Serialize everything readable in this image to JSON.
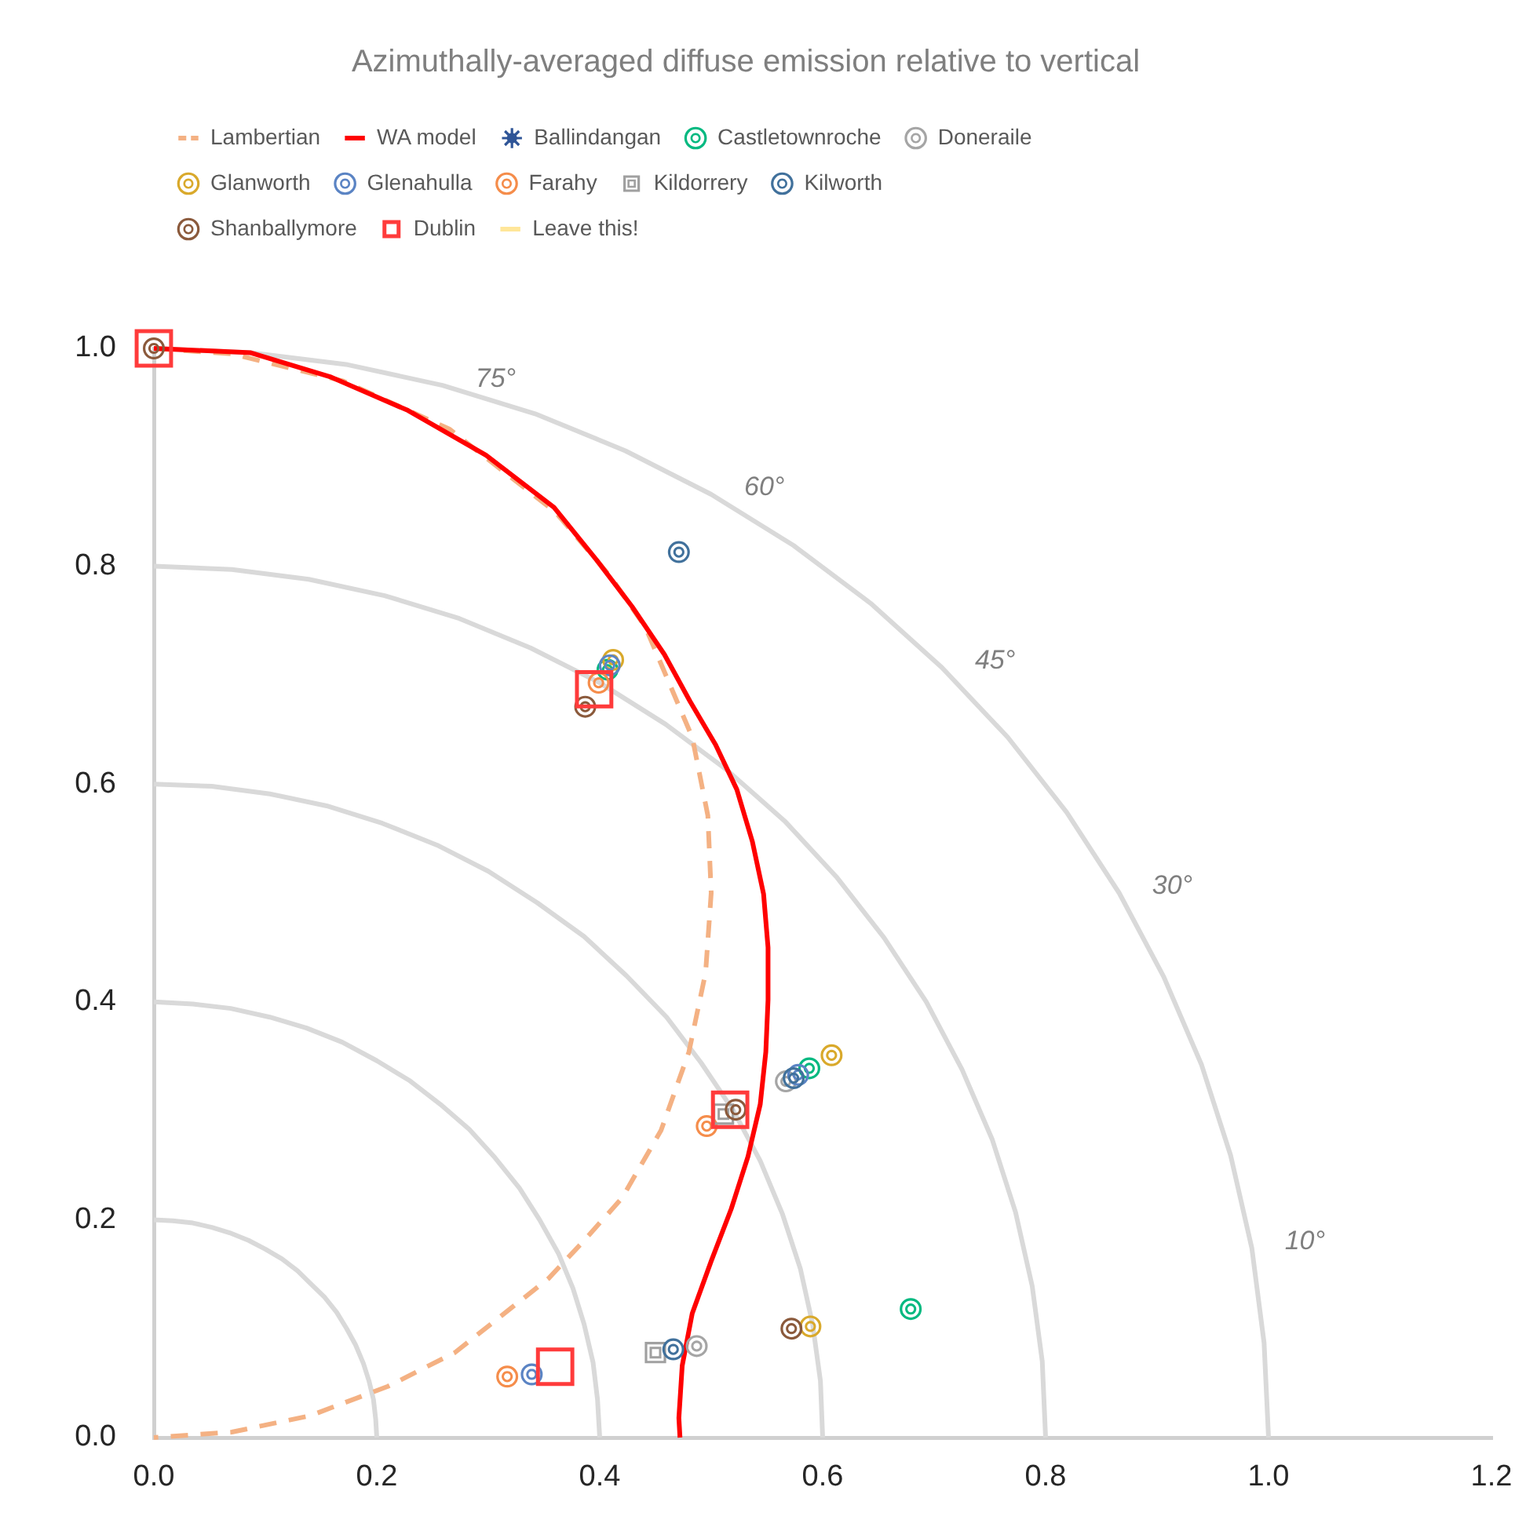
{
  "chart_data": {
    "type": "scatter",
    "title": "Azimuthally-averaged diffuse emission relative to vertical",
    "xlim": [
      0,
      1.2
    ],
    "ylim": [
      0,
      1
    ],
    "xticks": [
      {
        "value": 0,
        "label": "0.0"
      },
      0.2,
      0.4,
      0.6,
      0.8,
      {
        "value": 1,
        "label": "1.0"
      },
      1.2
    ],
    "yticks": [
      {
        "value": 0,
        "label": "0.0"
      },
      0.2,
      0.4,
      0.6,
      0.8,
      {
        "value": 1,
        "label": "1.0"
      }
    ],
    "grid": false,
    "legend": "top left",
    "annotations": [
      {
        "text": "75°",
        "x": 0.259,
        "y": 0.966
      },
      {
        "text": "60°",
        "x": 0.5,
        "y": 0.866
      },
      {
        "text": "45°",
        "x": 0.707,
        "y": 0.707
      },
      {
        "text": "30°",
        "x": 0.866,
        "y": 0.5
      },
      {
        "text": "10°",
        "x": 0.985,
        "y": 0.174
      }
    ],
    "series": [
      {
        "type": "line",
        "color": "#d9d9d9",
        "x": [
          0,
          0.087,
          0.174,
          0.259,
          0.342,
          0.423,
          0.5,
          0.574,
          0.643,
          0.707,
          0.766,
          0.819,
          0.866,
          0.906,
          0.94,
          0.966,
          0.985,
          0.996,
          1
        ],
        "values": [
          1,
          0.996,
          0.985,
          0.966,
          0.94,
          0.906,
          0.866,
          0.819,
          0.766,
          0.707,
          0.643,
          0.574,
          0.5,
          0.423,
          0.342,
          0.259,
          0.174,
          0.087,
          0
        ]
      },
      {
        "type": "line",
        "color": "#d9d9d9",
        "x": [
          0,
          0.07,
          0.139,
          0.207,
          0.274,
          0.338,
          0.4,
          0.459,
          0.514,
          0.566,
          0.613,
          0.655,
          0.693,
          0.725,
          0.752,
          0.773,
          0.788,
          0.797,
          0.8
        ],
        "values": [
          0.8,
          0.797,
          0.788,
          0.773,
          0.752,
          0.725,
          0.693,
          0.655,
          0.613,
          0.566,
          0.514,
          0.459,
          0.4,
          0.338,
          0.274,
          0.207,
          0.139,
          0.07,
          0
        ]
      },
      {
        "type": "line",
        "color": "#d9d9d9",
        "x": [
          0,
          0.052,
          0.104,
          0.155,
          0.205,
          0.254,
          0.3,
          0.344,
          0.386,
          0.424,
          0.46,
          0.491,
          0.52,
          0.544,
          0.564,
          0.58,
          0.591,
          0.598,
          0.6
        ],
        "values": [
          0.6,
          0.598,
          0.591,
          0.58,
          0.564,
          0.544,
          0.52,
          0.491,
          0.46,
          0.424,
          0.386,
          0.344,
          0.3,
          0.254,
          0.205,
          0.155,
          0.104,
          0.052,
          0
        ]
      },
      {
        "type": "line",
        "color": "#d9d9d9",
        "x": [
          0,
          0.035,
          0.069,
          0.104,
          0.137,
          0.169,
          0.2,
          0.229,
          0.257,
          0.283,
          0.306,
          0.328,
          0.346,
          0.363,
          0.376,
          0.386,
          0.394,
          0.398,
          0.4
        ],
        "values": [
          0.4,
          0.398,
          0.394,
          0.386,
          0.376,
          0.363,
          0.346,
          0.328,
          0.306,
          0.283,
          0.257,
          0.229,
          0.2,
          0.169,
          0.137,
          0.104,
          0.069,
          0.035,
          0
        ]
      },
      {
        "type": "line",
        "color": "#d9d9d9",
        "x": [
          0,
          0.017,
          0.035,
          0.052,
          0.068,
          0.085,
          0.1,
          0.115,
          0.129,
          0.141,
          0.153,
          0.164,
          0.173,
          0.181,
          0.188,
          0.193,
          0.197,
          0.199,
          0.2
        ],
        "values": [
          0.2,
          0.199,
          0.197,
          0.193,
          0.188,
          0.181,
          0.173,
          0.164,
          0.153,
          0.141,
          0.129,
          0.115,
          0.1,
          0.085,
          0.068,
          0.052,
          0.035,
          0.017,
          0
        ]
      },
      {
        "type": "line",
        "name": "Lambertian",
        "color": "#f4b183",
        "line_style": "dashed",
        "x": [
          0,
          0.07,
          0.17,
          0.265,
          0.36,
          0.41,
          0.441,
          0.483,
          0.497,
          0.5,
          0.495,
          0.48,
          0.455,
          0.42,
          0.387,
          0.354,
          0.27,
          0.21,
          0.14,
          0.07,
          0
        ],
        "values": [
          1,
          0.995,
          0.97,
          0.926,
          0.85,
          0.79,
          0.744,
          0.643,
          0.571,
          0.5,
          0.427,
          0.354,
          0.282,
          0.22,
          0.182,
          0.146,
          0.078,
          0.047,
          0.02,
          0.005,
          0
        ]
      },
      {
        "type": "line",
        "name": "WA model",
        "color": "#ff0000",
        "line_style": "solid",
        "x": [
          0,
          0.087,
          0.158,
          0.228,
          0.298,
          0.359,
          0.397,
          0.429,
          0.458,
          0.481,
          0.504,
          0.523,
          0.537,
          0.547,
          0.551,
          0.551,
          0.549,
          0.544,
          0.533,
          0.518,
          0.5,
          0.483,
          0.474,
          0.471,
          0.472
        ],
        "values": [
          1,
          0.996,
          0.974,
          0.943,
          0.902,
          0.854,
          0.806,
          0.763,
          0.719,
          0.676,
          0.636,
          0.595,
          0.547,
          0.499,
          0.45,
          0.402,
          0.354,
          0.306,
          0.258,
          0.21,
          0.162,
          0.114,
          0.066,
          0.018,
          0
        ]
      },
      {
        "name": "Ballindangan",
        "color": "#2f5597",
        "marker": "star"
      },
      {
        "name": "Castletownroche",
        "color": "#00b980",
        "marker": "circle",
        "x": [
          0.407,
          0.588,
          0.679
        ],
        "values": [
          0.705,
          0.339,
          0.118
        ]
      },
      {
        "name": "Doneraile",
        "color": "#a5a5a5",
        "marker": "circle",
        "x": [
          0.567,
          0.487
        ],
        "values": [
          0.327,
          0.084
        ]
      },
      {
        "name": "Glanworth",
        "color": "#d9a92b",
        "marker": "circle",
        "x": [
          0.412,
          0.608,
          0.589
        ],
        "values": [
          0.714,
          0.351,
          0.102
        ]
      },
      {
        "name": "Glenahulla",
        "color": "#5b84c4",
        "marker": "circle",
        "x": [
          0.409,
          0.578,
          0.339
        ],
        "values": [
          0.709,
          0.333,
          0.058
        ]
      },
      {
        "name": "Farahy",
        "color": "#f58d4b",
        "marker": "circle",
        "x": [
          0.399,
          0.496,
          0.317
        ],
        "values": [
          0.693,
          0.286,
          0.056
        ]
      },
      {
        "name": "Kildorrery",
        "color": "#a0a0a0",
        "marker": "square",
        "x": [
          0.511,
          0.45
        ],
        "values": [
          0.297,
          0.078
        ]
      },
      {
        "name": "Kilworth",
        "color": "#41719c",
        "marker": "circle",
        "x": [
          0.471,
          0.574,
          0.466
        ],
        "values": [
          0.813,
          0.33,
          0.081
        ]
      },
      {
        "name": "Shanballymore",
        "color": "#8b5a3c",
        "marker": "circle",
        "x": [
          0,
          0.387,
          0.522,
          0.572
        ],
        "values": [
          1,
          0.671,
          0.301,
          0.1
        ]
      },
      {
        "name": "Dublin",
        "color": "#ff3b3b",
        "marker": "square",
        "x": [
          0,
          0.395,
          0.517,
          0.36
        ],
        "values": [
          1,
          0.687,
          0.301,
          0.065
        ]
      },
      {
        "type": "line",
        "name": "Leave this!",
        "color": "#ffe699",
        "line_style": "solid"
      }
    ]
  }
}
